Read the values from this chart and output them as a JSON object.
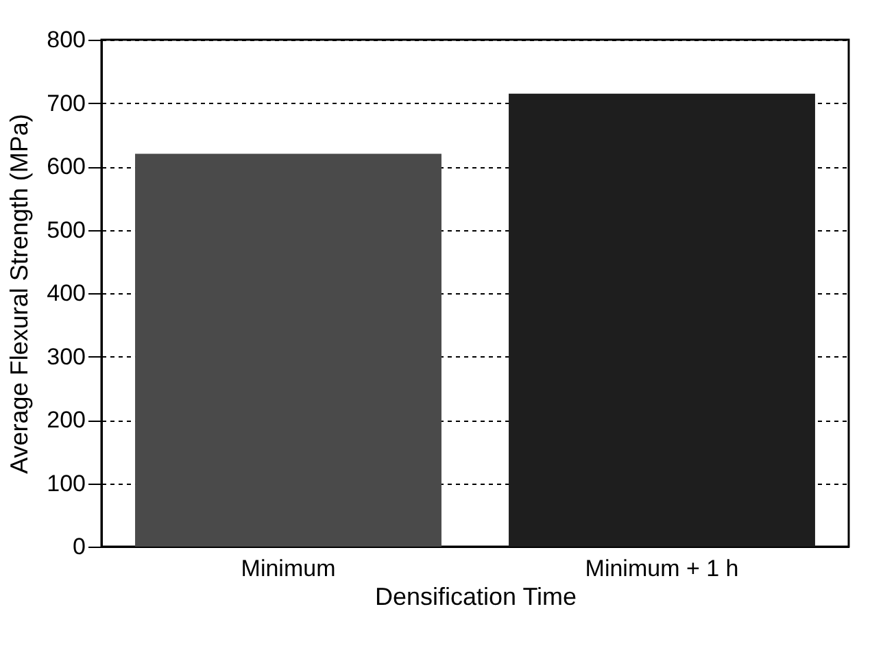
{
  "chart_data": {
    "type": "bar",
    "xlabel": "Densification  Time",
    "ylabel": "Average Flexural Strength (MPa)",
    "categories": [
      "Minimum",
      "Minimum + 1 h"
    ],
    "values": [
      620,
      715
    ],
    "colors": [
      "#4a4a4a",
      "#1e1e1e"
    ],
    "ylim": [
      0,
      800
    ],
    "yticks": [
      0,
      100,
      200,
      300,
      400,
      500,
      600,
      700,
      800
    ],
    "grid": "y"
  }
}
